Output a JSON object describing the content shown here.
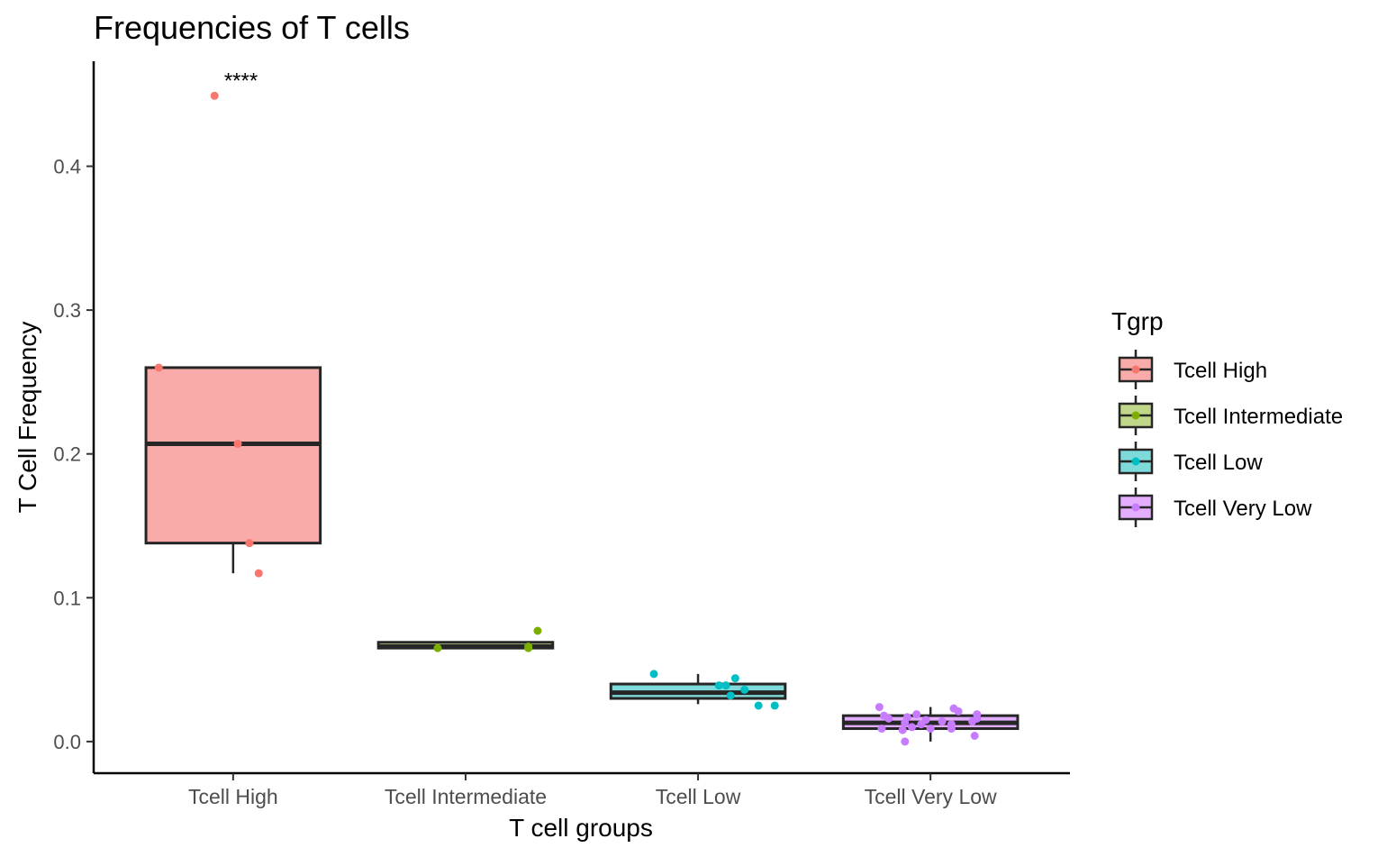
{
  "chart_data": {
    "type": "box",
    "title": "Frequencies of T cells",
    "xlabel": "T cell groups",
    "ylabel": "T Cell Frequency",
    "ylim": [
      -0.022,
      0.473
    ],
    "yticks": [
      0.0,
      0.1,
      0.2,
      0.3,
      0.4
    ],
    "ytick_labels": [
      "0.0",
      "0.1",
      "0.2",
      "0.3",
      "0.4"
    ],
    "grid": false,
    "legend": {
      "title": "Tgrp",
      "placement": "right",
      "entries": [
        "Tcell High",
        "Tcell Intermediate",
        "Tcell Low",
        "Tcell Very Low"
      ]
    },
    "annotation": {
      "text": "****",
      "category": "Tcell High",
      "y": 0.457
    },
    "categories": [
      "Tcell High",
      "Tcell Intermediate",
      "Tcell Low",
      "Tcell Very Low"
    ],
    "colors": {
      "Tcell High": {
        "fill": "#F8ABA8",
        "point": "#F8766D"
      },
      "Tcell Intermediate": {
        "fill": "#C0D689",
        "point": "#7CAE00"
      },
      "Tcell Low": {
        "fill": "#7FDADB",
        "point": "#00BFC4"
      },
      "Tcell Very Low": {
        "fill": "#E3AEFF",
        "point": "#C77CFF"
      }
    },
    "boxes": [
      {
        "name": "Tcell High",
        "whisker_low": 0.117,
        "q1": 0.138,
        "median": 0.207,
        "q3": 0.26,
        "whisker_high": 0.26,
        "points": [
          [
            -0.08,
            0.449
          ],
          [
            -0.32,
            0.26
          ],
          [
            0.02,
            0.207
          ],
          [
            0.07,
            0.138
          ],
          [
            0.11,
            0.117
          ]
        ]
      },
      {
        "name": "Tcell Intermediate",
        "whisker_low": 0.065,
        "q1": 0.065,
        "median": 0.066,
        "q3": 0.069,
        "whisker_high": 0.069,
        "points": [
          [
            -0.12,
            0.065
          ],
          [
            0.27,
            0.066
          ],
          [
            0.27,
            0.065
          ],
          [
            0.31,
            0.077
          ]
        ]
      },
      {
        "name": "Tcell Low",
        "whisker_low": 0.026,
        "q1": 0.03,
        "median": 0.034,
        "q3": 0.04,
        "whisker_high": 0.047,
        "points": [
          [
            -0.19,
            0.047
          ],
          [
            0.16,
            0.044
          ],
          [
            0.12,
            0.039
          ],
          [
            0.09,
            0.039
          ],
          [
            0.2,
            0.036
          ],
          [
            0.14,
            0.032
          ],
          [
            0.26,
            0.025
          ],
          [
            0.33,
            0.025
          ]
        ]
      },
      {
        "name": "Tcell Very Low",
        "whisker_low": 0.0,
        "q1": 0.009,
        "median": 0.013,
        "q3": 0.018,
        "whisker_high": 0.024,
        "points": [
          [
            -0.22,
            0.024
          ],
          [
            0.1,
            0.023
          ],
          [
            0.12,
            0.021
          ],
          [
            -0.06,
            0.019
          ],
          [
            0.2,
            0.019
          ],
          [
            -0.2,
            0.018
          ],
          [
            -0.1,
            0.017
          ],
          [
            0.2,
            0.016
          ],
          [
            -0.18,
            0.016
          ],
          [
            -0.02,
            0.015
          ],
          [
            0.05,
            0.014
          ],
          [
            0.18,
            0.014
          ],
          [
            -0.11,
            0.013
          ],
          [
            -0.04,
            0.012
          ],
          [
            0.09,
            0.012
          ],
          [
            -0.08,
            0.01
          ],
          [
            -0.21,
            0.009
          ],
          [
            0.0,
            0.009
          ],
          [
            0.09,
            0.009
          ],
          [
            -0.12,
            0.008
          ],
          [
            0.19,
            0.004
          ],
          [
            -0.11,
            0.0
          ]
        ]
      }
    ]
  }
}
